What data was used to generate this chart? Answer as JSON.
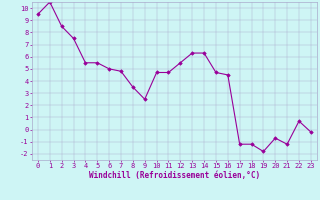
{
  "x": [
    0,
    1,
    2,
    3,
    4,
    5,
    6,
    7,
    8,
    9,
    10,
    11,
    12,
    13,
    14,
    15,
    16,
    17,
    18,
    19,
    20,
    21,
    22,
    23
  ],
  "y": [
    9.5,
    10.5,
    8.5,
    7.5,
    5.5,
    5.5,
    5.0,
    4.8,
    3.5,
    2.5,
    4.7,
    4.7,
    5.5,
    6.3,
    6.3,
    4.7,
    4.5,
    -1.2,
    -1.2,
    -1.8,
    -0.7,
    -1.2,
    0.7,
    -0.2
  ],
  "line_color": "#990099",
  "marker": "D",
  "markersize": 1.8,
  "linewidth": 0.8,
  "xlabel": "Windchill (Refroidissement éolien,°C)",
  "xlim": [
    -0.5,
    23.5
  ],
  "ylim": [
    -2.5,
    10.5
  ],
  "yticks": [
    -2,
    -1,
    0,
    1,
    2,
    3,
    4,
    5,
    6,
    7,
    8,
    9,
    10
  ],
  "xticks": [
    0,
    1,
    2,
    3,
    4,
    5,
    6,
    7,
    8,
    9,
    10,
    11,
    12,
    13,
    14,
    15,
    16,
    17,
    18,
    19,
    20,
    21,
    22,
    23
  ],
  "bg_color": "#cef5f5",
  "grid_color": "#aaaacc",
  "tick_color": "#990099",
  "label_color": "#990099",
  "xlabel_fontsize": 5.5,
  "tick_fontsize": 5.0
}
